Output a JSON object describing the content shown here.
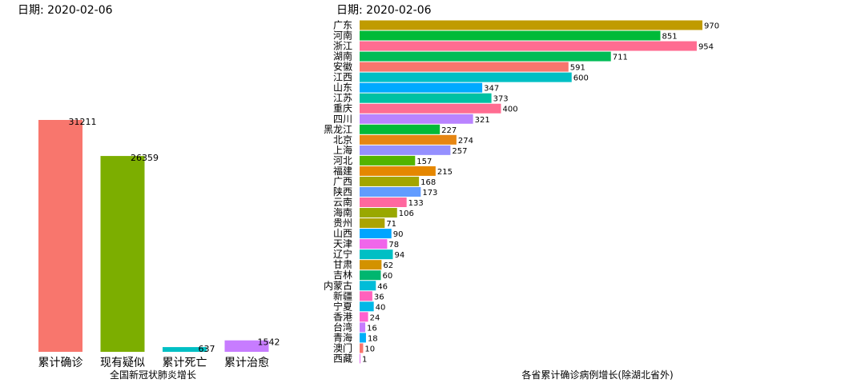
{
  "chart_data": [
    {
      "type": "bar",
      "date_label": "日期: 2020-02-06",
      "xlabel": "全国新冠状肺炎增长",
      "ylabel": "",
      "categories": [
        "累计确诊",
        "现有疑似",
        "累计死亡",
        "累计治愈"
      ],
      "values": [
        31211,
        26359,
        637,
        1542
      ],
      "value_labels": [
        "31211",
        "26359",
        "637",
        "1542"
      ],
      "colors": [
        "#F8766D",
        "#7CAE00",
        "#00BFC4",
        "#C77CFF"
      ],
      "orientation": "vertical",
      "grid": false,
      "legend": "none"
    },
    {
      "type": "bar",
      "date_label": "日期: 2020-02-06",
      "xlabel": "各省累计确诊病例增长(除湖北省外)",
      "ylabel": "",
      "orientation": "horizontal",
      "grid": false,
      "legend": "none",
      "categories": [
        "广东",
        "河南",
        "浙江",
        "湖南",
        "安徽",
        "江西",
        "山东",
        "江苏",
        "重庆",
        "四川",
        "黑龙江",
        "北京",
        "上海",
        "河北",
        "福建",
        "广西",
        "陕西",
        "云南",
        "海南",
        "贵州",
        "山西",
        "天津",
        "辽宁",
        "甘肃",
        "吉林",
        "内蒙古",
        "新疆",
        "宁夏",
        "香港",
        "台湾",
        "青海",
        "澳门",
        "西藏"
      ],
      "values": [
        970,
        851,
        954,
        711,
        591,
        600,
        347,
        373,
        400,
        321,
        227,
        274,
        257,
        157,
        215,
        168,
        173,
        133,
        106,
        71,
        90,
        78,
        94,
        62,
        60,
        46,
        36,
        40,
        24,
        16,
        18,
        10,
        1
      ],
      "value_labels": [
        "970",
        "851",
        "954",
        "711",
        "591",
        "600",
        "347",
        "373",
        "400",
        "321",
        "227",
        "274",
        "257",
        "157",
        "215",
        "168",
        "173",
        "133",
        "106",
        "71",
        "90",
        "78",
        "94",
        "62",
        "60",
        "46",
        "36",
        "40",
        "24",
        "16",
        "18",
        "10",
        "1"
      ],
      "colors": [
        "#C09B00",
        "#00BA38",
        "#FF6C91",
        "#00BC56",
        "#F8766D",
        "#00BFC4",
        "#00A9FF",
        "#00C1A3",
        "#FF6C91",
        "#B983FF",
        "#00BA38",
        "#E68613",
        "#9590FF",
        "#53B400",
        "#E58700",
        "#A3A500",
        "#619CFF",
        "#FF689F",
        "#99A800",
        "#ABA300",
        "#00A5FF",
        "#F066EA",
        "#00BFC4",
        "#D39200",
        "#00B66F",
        "#00BCD8",
        "#FF62BC",
        "#00B8E7",
        "#FE61CF",
        "#C77CFF",
        "#00AFF8",
        "#F8766D",
        "#E76BF3"
      ]
    }
  ]
}
